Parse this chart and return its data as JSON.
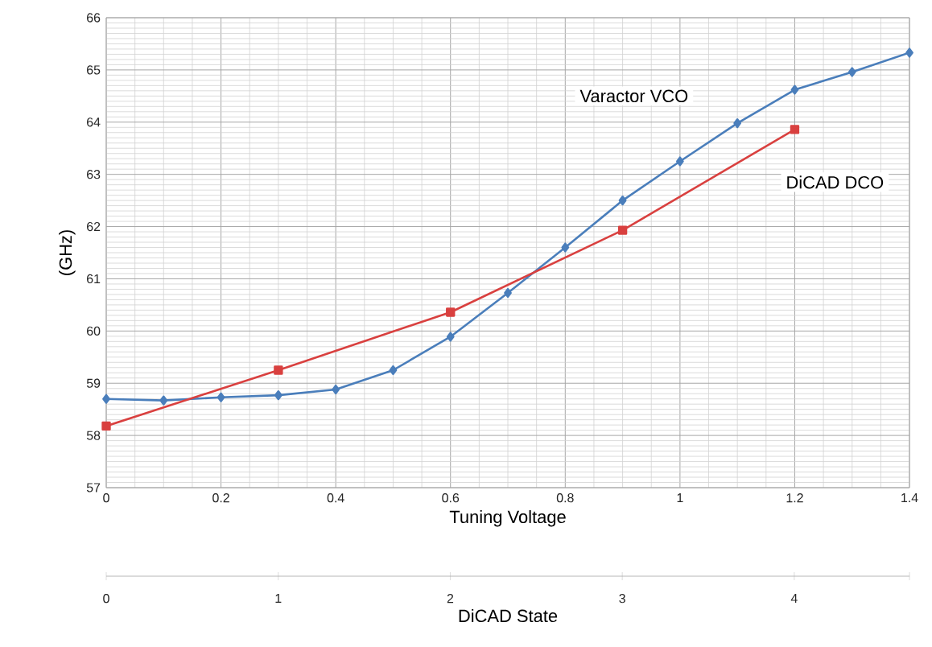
{
  "chart_data": {
    "type": "line",
    "xlabel": "Tuning Voltage",
    "ylabel": "(GHz)",
    "x2label": "DiCAD State",
    "xlim": [
      0,
      1.4
    ],
    "xticks": [
      0,
      0.2,
      0.4,
      0.6,
      0.8,
      1,
      1.2,
      1.4
    ],
    "ylim": [
      57,
      66
    ],
    "yticks": [
      57,
      58,
      59,
      60,
      61,
      62,
      63,
      64,
      65,
      66
    ],
    "x2lim": [
      0,
      4.67
    ],
    "x2ticks": [
      0,
      1,
      2,
      3,
      4,
      {
        "value": 4.67,
        "label": null
      }
    ],
    "grid": true,
    "legend": false,
    "series": [
      {
        "name": "Varactor VCO",
        "color": "#4a7ebb",
        "marker": "diamond",
        "x": [
          0,
          0.1,
          0.2,
          0.3,
          0.4,
          0.5,
          0.6,
          0.7,
          0.8,
          0.9,
          1.0,
          1.1,
          1.2,
          1.3,
          1.4
        ],
        "values": [
          58.7,
          58.67,
          58.73,
          58.77,
          58.88,
          59.25,
          59.89,
          60.73,
          61.6,
          62.5,
          63.25,
          63.98,
          64.62,
          64.96,
          65.33
        ]
      },
      {
        "name": "DiCAD DCO",
        "color": "#d9403f",
        "marker": "square",
        "x": [
          0,
          0.3,
          0.6,
          0.9,
          1.2
        ],
        "values": [
          58.18,
          59.25,
          60.36,
          61.93,
          63.86
        ]
      }
    ]
  }
}
